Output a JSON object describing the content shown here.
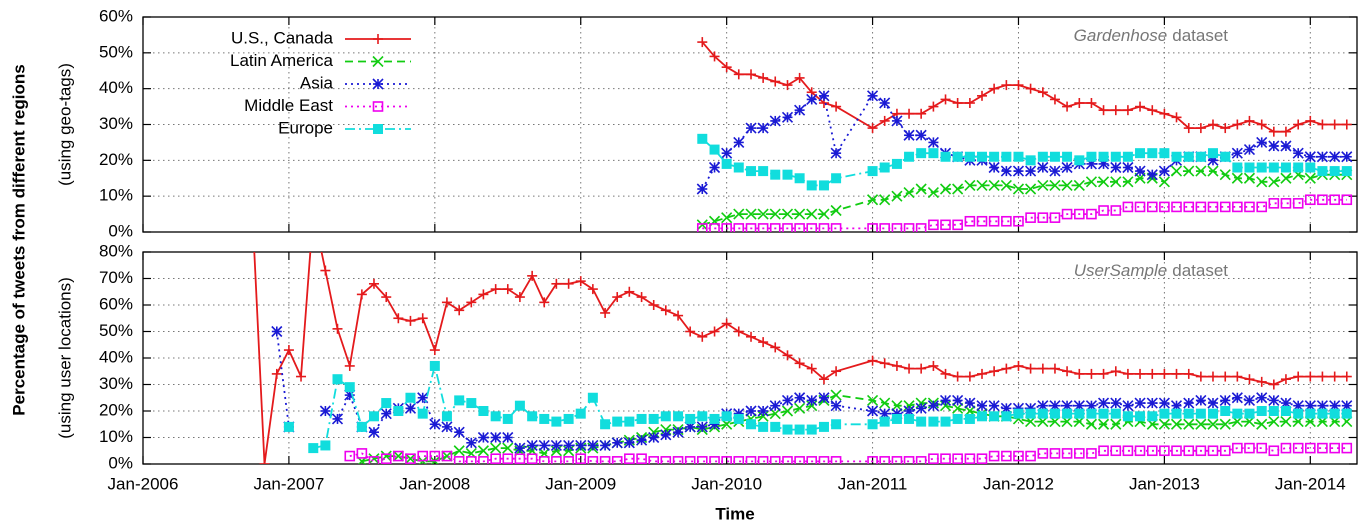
{
  "ylabel": "Percentage of tweets from different regions",
  "xlabel": "Time",
  "chart_data": [
    {
      "type": "line",
      "ylabel": "(using geo-tags)",
      "annotation_emphasis": "Gardenhose",
      "annotation": "dataset",
      "legend": "upper left",
      "grid": true,
      "xlim": [
        2006,
        2014.32
      ],
      "xticks": [
        2006,
        2007,
        2008,
        2009,
        2010,
        2011,
        2012,
        2013,
        2014
      ],
      "ylim": [
        0,
        60
      ],
      "yticks": [
        {
          "value": 0,
          "label": "0%"
        },
        {
          "value": 10,
          "label": "10%"
        },
        {
          "value": 20,
          "label": "20%"
        },
        {
          "value": 30,
          "label": "30%"
        },
        {
          "value": 40,
          "label": "40%"
        },
        {
          "value": 50,
          "label": "50%"
        },
        {
          "value": 60,
          "label": "60%"
        }
      ],
      "x": [
        2009.833,
        2009.917,
        2010,
        2010.083,
        2010.167,
        2010.25,
        2010.333,
        2010.417,
        2010.5,
        2010.583,
        2010.667,
        2010.75,
        2011,
        2011.083,
        2011.167,
        2011.25,
        2011.333,
        2011.417,
        2011.5,
        2011.583,
        2011.667,
        2011.75,
        2011.833,
        2011.917,
        2012,
        2012.083,
        2012.167,
        2012.25,
        2012.333,
        2012.417,
        2012.5,
        2012.583,
        2012.667,
        2012.75,
        2012.833,
        2012.917,
        2013,
        2013.083,
        2013.167,
        2013.25,
        2013.333,
        2013.417,
        2013.5,
        2013.583,
        2013.667,
        2013.75,
        2013.833,
        2013.917,
        2014,
        2014.083,
        2014.167,
        2014.25
      ],
      "series": [
        {
          "name": "U.S., Canada",
          "color": "#e41a1c",
          "line_style": "solid",
          "marker": "plus",
          "values": [
            53,
            49,
            46,
            44,
            44,
            43,
            42,
            41,
            43,
            39,
            36,
            35,
            29,
            31,
            33,
            33,
            33,
            35,
            37,
            36,
            36,
            38,
            40,
            41,
            41,
            40,
            39,
            37,
            35,
            36,
            36,
            34,
            34,
            34,
            35,
            34,
            33,
            32,
            29,
            29,
            30,
            29,
            30,
            31,
            30,
            28,
            28,
            30,
            31,
            30,
            30,
            30
          ]
        },
        {
          "name": "Latin America",
          "color": "#11cc11",
          "line_style": "dashed",
          "marker": "cross",
          "values": [
            2,
            3,
            4,
            5,
            5,
            5,
            5,
            5,
            5,
            5,
            5,
            6,
            9,
            9,
            10,
            11,
            12,
            11,
            12,
            12,
            13,
            13,
            13,
            13,
            12,
            12,
            13,
            13,
            13,
            13,
            14,
            14,
            14,
            14,
            15,
            15,
            14,
            17,
            17,
            17,
            17,
            16,
            15,
            15,
            14,
            14,
            15,
            16,
            15,
            16,
            16,
            16
          ]
        },
        {
          "name": "Asia",
          "color": "#1a1ad4",
          "line_style": "dotted",
          "marker": "star",
          "values": [
            12,
            18,
            22,
            25,
            29,
            29,
            31,
            32,
            34,
            37,
            38,
            22,
            38,
            36,
            31,
            27,
            27,
            25,
            22,
            21,
            20,
            20,
            18,
            17,
            17,
            17,
            18,
            17,
            18,
            19,
            19,
            19,
            18,
            18,
            17,
            16,
            17,
            20,
            21,
            21,
            20,
            21,
            22,
            23,
            25,
            24,
            24,
            22,
            21,
            21,
            21,
            21
          ]
        },
        {
          "name": "Middle East",
          "color": "#ee00ee",
          "line_style": "dotted",
          "marker": "open-square",
          "values": [
            1,
            1,
            1,
            1,
            1,
            1,
            1,
            1,
            1,
            1,
            1,
            1,
            1,
            1,
            1,
            1,
            1,
            2,
            2,
            2,
            3,
            3,
            3,
            3,
            3,
            4,
            4,
            4,
            5,
            5,
            5,
            6,
            6,
            7,
            7,
            7,
            7,
            7,
            7,
            7,
            7,
            7,
            7,
            7,
            7,
            8,
            8,
            8,
            9,
            9,
            9,
            9
          ]
        },
        {
          "name": "Europe",
          "color": "#11dddd",
          "line_style": "dashdot",
          "marker": "filled-square",
          "values": [
            26,
            23,
            19,
            18,
            17,
            17,
            16,
            16,
            15,
            13,
            13,
            15,
            17,
            18,
            19,
            21,
            22,
            22,
            21,
            21,
            21,
            21,
            21,
            21,
            21,
            20,
            21,
            21,
            21,
            20,
            21,
            21,
            21,
            21,
            22,
            22,
            22,
            21,
            21,
            21,
            22,
            21,
            18,
            18,
            18,
            18,
            18,
            18,
            18,
            17,
            17,
            17
          ]
        }
      ]
    },
    {
      "type": "line",
      "ylabel": "(using user locations)",
      "annotation_emphasis": "UserSample",
      "annotation": "dataset",
      "grid": true,
      "xlim": [
        2006,
        2014.32
      ],
      "xticks": [
        {
          "value": 2006,
          "label": "Jan-2006"
        },
        {
          "value": 2007,
          "label": "Jan-2007"
        },
        {
          "value": 2008,
          "label": "Jan-2008"
        },
        {
          "value": 2009,
          "label": "Jan-2009"
        },
        {
          "value": 2010,
          "label": "Jan-2010"
        },
        {
          "value": 2011,
          "label": "Jan-2011"
        },
        {
          "value": 2012,
          "label": "Jan-2012"
        },
        {
          "value": 2013,
          "label": "Jan-2013"
        },
        {
          "value": 2014,
          "label": "Jan-2014"
        }
      ],
      "ylim": [
        0,
        80
      ],
      "yticks": [
        {
          "value": 0,
          "label": "0%"
        },
        {
          "value": 10,
          "label": "10%"
        },
        {
          "value": 20,
          "label": "20%"
        },
        {
          "value": 30,
          "label": "30%"
        },
        {
          "value": 40,
          "label": "40%"
        },
        {
          "value": 50,
          "label": "50%"
        },
        {
          "value": 60,
          "label": "60%"
        },
        {
          "value": 70,
          "label": "70%"
        },
        {
          "value": 80,
          "label": "80%"
        }
      ],
      "x": [
        2006.75,
        2006.833,
        2006.917,
        2007,
        2007.083,
        2007.167,
        2007.25,
        2007.333,
        2007.417,
        2007.5,
        2007.583,
        2007.667,
        2007.75,
        2007.833,
        2007.917,
        2008,
        2008.083,
        2008.167,
        2008.25,
        2008.333,
        2008.417,
        2008.5,
        2008.583,
        2008.667,
        2008.75,
        2008.833,
        2008.917,
        2009,
        2009.083,
        2009.167,
        2009.25,
        2009.333,
        2009.417,
        2009.5,
        2009.583,
        2009.667,
        2009.75,
        2009.833,
        2009.917,
        2010,
        2010.083,
        2010.167,
        2010.25,
        2010.333,
        2010.417,
        2010.5,
        2010.583,
        2010.667,
        2010.75,
        2011,
        2011.083,
        2011.167,
        2011.25,
        2011.333,
        2011.417,
        2011.5,
        2011.583,
        2011.667,
        2011.75,
        2011.833,
        2011.917,
        2012,
        2012.083,
        2012.167,
        2012.25,
        2012.333,
        2012.417,
        2012.5,
        2012.583,
        2012.667,
        2012.75,
        2012.833,
        2012.917,
        2013,
        2013.083,
        2013.167,
        2013.25,
        2013.333,
        2013.417,
        2013.5,
        2013.583,
        2013.667,
        2013.75,
        2013.833,
        2013.917,
        2014,
        2014.083,
        2014.167,
        2014.25
      ],
      "series": [
        {
          "color": "#e41a1c",
          "line_style": "solid",
          "marker": "plus",
          "values": [
            95,
            0,
            34,
            43,
            33,
            95,
            73,
            51,
            37,
            64,
            68,
            63,
            55,
            54,
            55,
            43,
            61,
            58,
            61,
            64,
            66,
            66,
            63,
            71,
            61,
            68,
            68,
            69,
            66,
            57,
            63,
            65,
            63,
            60,
            58,
            56,
            50,
            48,
            50,
            53,
            50,
            48,
            46,
            44,
            41,
            38,
            36,
            32,
            35,
            39,
            38,
            37,
            36,
            36,
            37,
            34,
            33,
            33,
            34,
            35,
            36,
            37,
            36,
            36,
            36,
            35,
            34,
            34,
            34,
            35,
            34,
            34,
            34,
            34,
            34,
            34,
            33,
            33,
            33,
            33,
            32,
            31,
            30,
            32,
            33,
            33,
            33,
            33,
            33
          ]
        },
        {
          "color": "#11cc11",
          "line_style": "dashed",
          "marker": "cross",
          "values": [
            null,
            null,
            null,
            null,
            null,
            null,
            null,
            null,
            null,
            1,
            2,
            3,
            3,
            2,
            1,
            1,
            3,
            5,
            4,
            5,
            6,
            6,
            5,
            5,
            4,
            5,
            5,
            6,
            6,
            7,
            8,
            9,
            10,
            12,
            13,
            13,
            14,
            13,
            14,
            15,
            16,
            17,
            18,
            19,
            20,
            21,
            22,
            24,
            26,
            24,
            23,
            22,
            22,
            23,
            23,
            22,
            21,
            20,
            19,
            18,
            18,
            17,
            16,
            16,
            16,
            16,
            16,
            15,
            15,
            15,
            16,
            16,
            15,
            15,
            15,
            15,
            15,
            15,
            15,
            16,
            16,
            15,
            16,
            16,
            16,
            16,
            16,
            16,
            16
          ]
        },
        {
          "color": "#1a1ad4",
          "line_style": "dotted",
          "marker": "star",
          "values": [
            null,
            null,
            50,
            14,
            null,
            null,
            20,
            17,
            26,
            14,
            12,
            19,
            21,
            21,
            25,
            15,
            14,
            12,
            8,
            10,
            10,
            10,
            6,
            7,
            7,
            7,
            7,
            7,
            7,
            7,
            8,
            8,
            9,
            10,
            11,
            12,
            14,
            14,
            15,
            19,
            19,
            20,
            20,
            22,
            24,
            25,
            24,
            25,
            22,
            20,
            19,
            19,
            20,
            21,
            22,
            24,
            24,
            23,
            22,
            22,
            21,
            21,
            21,
            22,
            22,
            22,
            22,
            22,
            23,
            23,
            22,
            23,
            23,
            23,
            22,
            23,
            24,
            23,
            24,
            25,
            24,
            25,
            24,
            23,
            22,
            22,
            22,
            22,
            22
          ]
        },
        {
          "color": "#ee00ee",
          "line_style": "dotted",
          "marker": "open-square",
          "values": [
            null,
            null,
            null,
            null,
            null,
            null,
            null,
            null,
            3,
            4,
            1,
            2,
            3,
            2,
            3,
            3,
            3,
            1,
            1,
            1,
            2,
            2,
            2,
            2,
            1,
            1,
            1,
            2,
            1,
            1,
            1,
            2,
            2,
            1,
            1,
            1,
            1,
            1,
            1,
            1,
            1,
            1,
            1,
            1,
            1,
            1,
            1,
            1,
            1,
            1,
            1,
            1,
            1,
            1,
            2,
            2,
            2,
            2,
            2,
            3,
            3,
            3,
            3,
            4,
            4,
            4,
            4,
            4,
            5,
            5,
            5,
            5,
            5,
            5,
            5,
            5,
            5,
            5,
            5,
            6,
            6,
            6,
            5,
            6,
            6,
            6,
            6,
            6,
            6
          ]
        },
        {
          "color": "#11dddd",
          "line_style": "dashdot",
          "marker": "filled-square",
          "values": [
            null,
            null,
            null,
            14,
            null,
            6,
            7,
            32,
            29,
            14,
            18,
            23,
            20,
            25,
            19,
            37,
            18,
            24,
            23,
            20,
            18,
            17,
            22,
            18,
            17,
            16,
            17,
            19,
            25,
            15,
            16,
            16,
            17,
            17,
            18,
            18,
            17,
            18,
            17,
            18,
            17,
            15,
            14,
            14,
            13,
            13,
            13,
            14,
            15,
            15,
            16,
            17,
            17,
            16,
            16,
            16,
            17,
            17,
            18,
            18,
            18,
            19,
            19,
            19,
            19,
            19,
            19,
            19,
            19,
            19,
            18,
            18,
            18,
            19,
            19,
            19,
            19,
            19,
            20,
            19,
            19,
            20,
            20,
            20,
            19,
            19,
            19,
            19,
            19
          ]
        }
      ]
    }
  ]
}
